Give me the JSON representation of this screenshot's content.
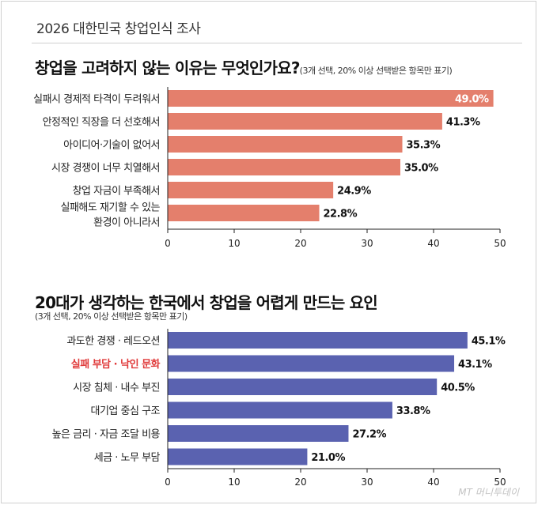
{
  "survey_title": "2026 대한민국 창업인식 조사",
  "watermark": "MT 머니투데이",
  "chart_data": [
    {
      "type": "bar",
      "orientation": "horizontal",
      "title": "창업을 고려하지 않는 이유는 무엇인가요?",
      "subtitle": "(3개 선택, 20% 이상 선택받은 항목만 표기)",
      "categories": [
        "실패시 경제적 타격이 두려워서",
        "안정적인 직장을 더 선호해서",
        "아이디어·기술이 없어서",
        "시장 경쟁이 너무 치열해서",
        "창업 자금이 부족해서",
        "실패해도 재기할 수 있는 환경이 아니라서"
      ],
      "values": [
        49.0,
        41.3,
        35.3,
        35.0,
        24.9,
        22.8
      ],
      "value_labels": [
        "49.0%",
        "41.3%",
        "35.3%",
        "35.0%",
        "24.9%",
        "22.8%"
      ],
      "xlim": [
        0,
        50
      ],
      "xticks": [
        "0",
        "10",
        "20",
        "30",
        "40",
        "50"
      ],
      "bar_color": "#e47f6c",
      "grid": false
    },
    {
      "type": "bar",
      "orientation": "horizontal",
      "title": "20대가 생각하는 한국에서 창업을 어렵게 만드는 요인",
      "subtitle": "(3개 선택, 20% 이상 선택받은 항목만 표기)",
      "categories": [
        "과도한 경쟁 · 레드오션",
        "실패 부담 · 낙인 문화",
        "시장 침체 · 내수 부진",
        "대기업 중심 구조",
        "높은 금리 · 자금 조달 비용",
        "세금 · 노무 부담"
      ],
      "values": [
        45.1,
        43.1,
        40.5,
        33.8,
        27.2,
        21.0
      ],
      "value_labels": [
        "45.1%",
        "43.1%",
        "40.5%",
        "33.8%",
        "27.2%",
        "21.0%"
      ],
      "highlight_category": "실패 부담 · 낙인 문화",
      "highlight_color": "#e03a3a",
      "xlim": [
        0,
        50
      ],
      "xticks": [
        "0",
        "10",
        "20",
        "30",
        "40",
        "50"
      ],
      "bar_color": "#5a62b0",
      "grid": false
    }
  ]
}
